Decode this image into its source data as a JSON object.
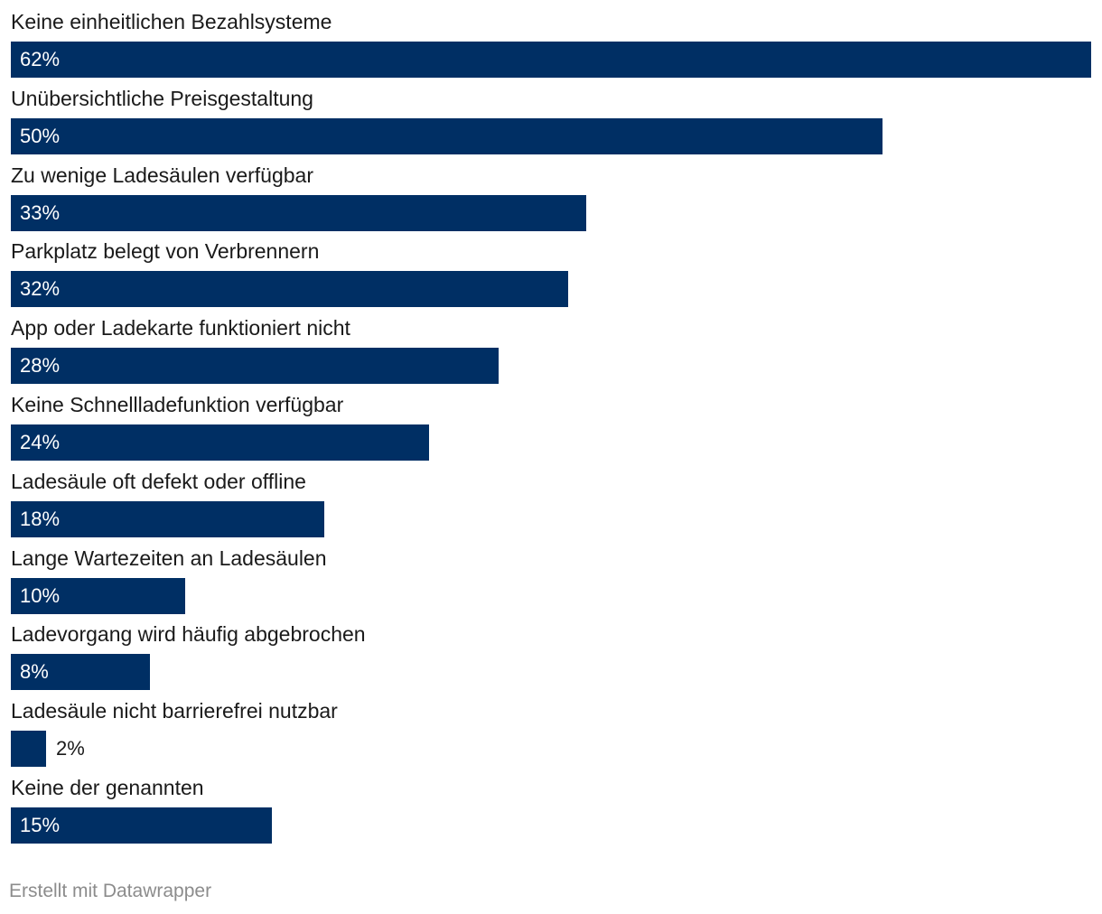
{
  "chart_data": {
    "type": "bar",
    "orientation": "horizontal",
    "categories": [
      "Keine einheitlichen Bezahlsysteme",
      "Unübersichtliche Preisgestaltung",
      "Zu wenige Ladesäulen verfügbar",
      "Parkplatz belegt von Verbrennern",
      "App oder Ladekarte funktioniert nicht",
      "Keine Schnellladefunktion verfügbar",
      "Ladesäule oft defekt oder offline",
      "Lange Wartezeiten an Ladesäulen",
      "Ladevorgang wird häufig abgebrochen",
      "Ladesäule nicht barrierefrei nutzbar",
      "Keine der genannten"
    ],
    "values": [
      62,
      50,
      33,
      32,
      28,
      24,
      18,
      10,
      8,
      2,
      15
    ],
    "value_labels": [
      "62%",
      "50%",
      "33%",
      "32%",
      "28%",
      "24%",
      "18%",
      "10%",
      "8%",
      "2%",
      "15%"
    ],
    "unit": "%",
    "xlim": [
      0,
      62
    ],
    "grid": false,
    "legend": "none",
    "bar_color": "#002f64"
  },
  "footer": {
    "credit": "Erstellt mit Datawrapper"
  }
}
